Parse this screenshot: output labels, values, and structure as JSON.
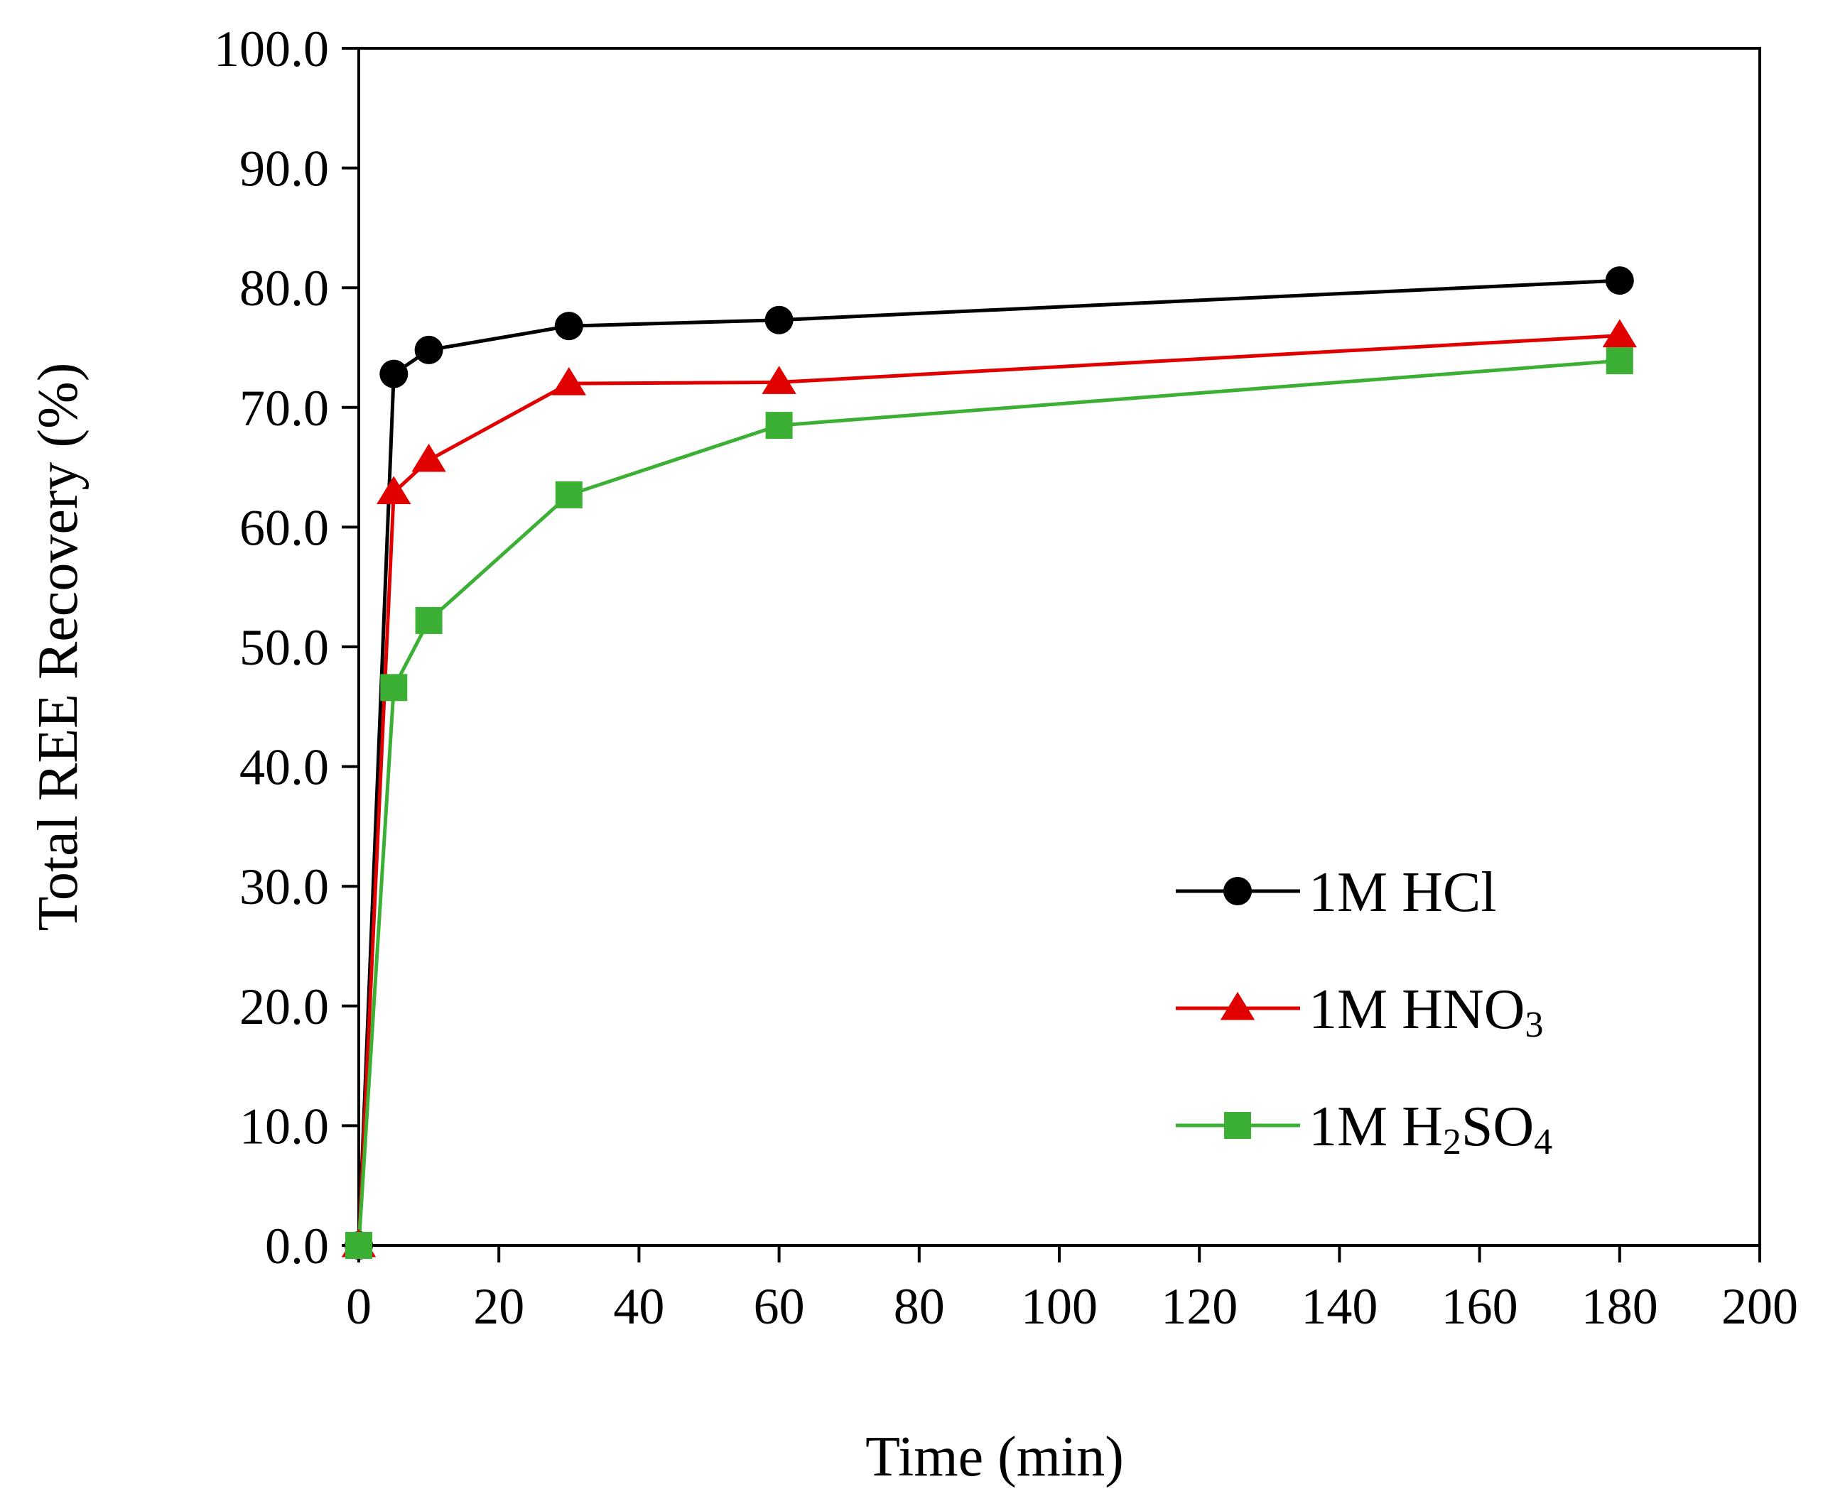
{
  "chart_data": {
    "type": "line",
    "title": "",
    "xlabel": "Time (min)",
    "ylabel": "Total REE Recovery (%)",
    "xlim": [
      0,
      200
    ],
    "ylim": [
      0,
      100
    ],
    "x_ticks": [
      0,
      20,
      40,
      60,
      80,
      100,
      120,
      140,
      160,
      180,
      200
    ],
    "y_ticks": [
      0,
      10,
      20,
      30,
      40,
      50,
      60,
      70,
      80,
      90,
      100
    ],
    "x_tick_labels": [
      "0",
      "20",
      "40",
      "60",
      "80",
      "100",
      "120",
      "140",
      "160",
      "180",
      "200"
    ],
    "y_tick_labels": [
      "0.0",
      "10.0",
      "20.0",
      "30.0",
      "40.0",
      "50.0",
      "60.0",
      "70.0",
      "80.0",
      "90.0",
      "100.0"
    ],
    "grid": false,
    "legend_position": "bottom-right",
    "series": [
      {
        "name": "1M HCl",
        "label_main": "1M HCl",
        "color": "#000000",
        "marker": "circle",
        "x": [
          0,
          5,
          10,
          30,
          60,
          180
        ],
        "values": [
          0.0,
          72.8,
          74.8,
          76.8,
          77.3,
          80.6
        ]
      },
      {
        "name": "1M HNO3",
        "label_main": "1M HNO",
        "label_sub": "3",
        "color": "#e00000",
        "marker": "triangle",
        "x": [
          0,
          5,
          10,
          30,
          60,
          180
        ],
        "values": [
          0.0,
          62.9,
          65.6,
          72.0,
          72.1,
          76.0
        ]
      },
      {
        "name": "1M H2SO4",
        "label_main": "1M H",
        "label_sub": "2",
        "label_main2": "SO",
        "label_sub2": "4",
        "color": "#3cb034",
        "marker": "square",
        "x": [
          0,
          5,
          10,
          30,
          60,
          180
        ],
        "values": [
          0.0,
          46.6,
          52.2,
          62.7,
          68.5,
          73.9
        ]
      }
    ]
  }
}
